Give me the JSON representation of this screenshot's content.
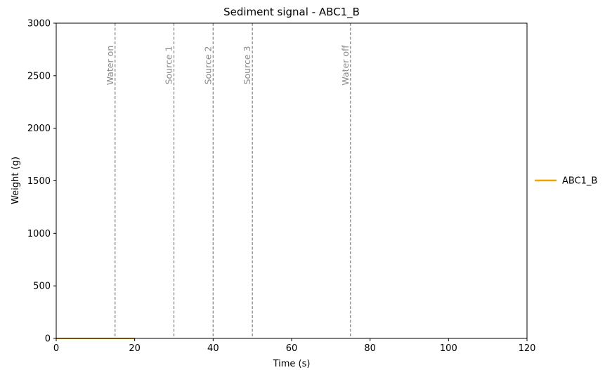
{
  "chart_data": {
    "type": "line",
    "title": "Sediment signal - ABC1_B",
    "xlabel": "Time (s)",
    "ylabel": "Weight (g)",
    "xlim": [
      0,
      120
    ],
    "ylim": [
      0,
      3000
    ],
    "xticks": [
      0,
      20,
      40,
      60,
      80,
      100,
      120
    ],
    "yticks": [
      0,
      500,
      1000,
      1500,
      2000,
      2500,
      3000
    ],
    "grid": false,
    "legend_position": "right",
    "series": [
      {
        "name": "ABC1_B",
        "color": "#f0a500",
        "x": [
          0,
          20
        ],
        "y": [
          0,
          0
        ]
      }
    ],
    "vertical_lines": [
      {
        "x": 15,
        "label": "Water on"
      },
      {
        "x": 30,
        "label": "Source 1"
      },
      {
        "x": 40,
        "label": "Source 2"
      },
      {
        "x": 50,
        "label": "Source 3"
      },
      {
        "x": 75,
        "label": "Water off"
      }
    ],
    "vertical_line_color": "#8a8a8a"
  }
}
